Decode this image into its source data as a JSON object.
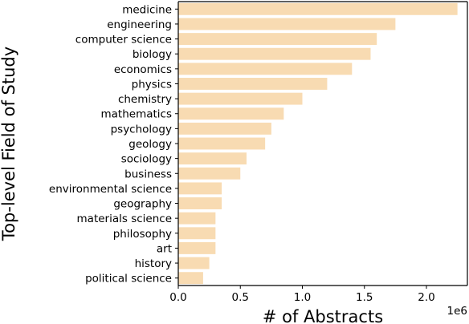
{
  "chart_data": {
    "type": "bar",
    "orientation": "horizontal",
    "categories": [
      "medicine",
      "engineering",
      "computer science",
      "biology",
      "economics",
      "physics",
      "chemistry",
      "mathematics",
      "psychology",
      "geology",
      "sociology",
      "business",
      "environmental science",
      "geography",
      "materials science",
      "philosophy",
      "art",
      "history",
      "political science"
    ],
    "values": [
      2250000,
      1750000,
      1600000,
      1550000,
      1400000,
      1200000,
      1000000,
      850000,
      750000,
      700000,
      550000,
      500000,
      350000,
      350000,
      300000,
      300000,
      300000,
      250000,
      200000
    ],
    "xlabel": "# of Abstracts",
    "ylabel": "Top-level Field of Study",
    "xlim": [
      0,
      2330000
    ],
    "x_ticks": [
      0,
      500000,
      1000000,
      1500000,
      2000000
    ],
    "x_tick_labels": [
      "0.0",
      "0.5",
      "1.0",
      "1.5",
      "2.0"
    ],
    "x_scale_label": "1e6",
    "bar_color": "#f8dbb2",
    "grid": false
  }
}
